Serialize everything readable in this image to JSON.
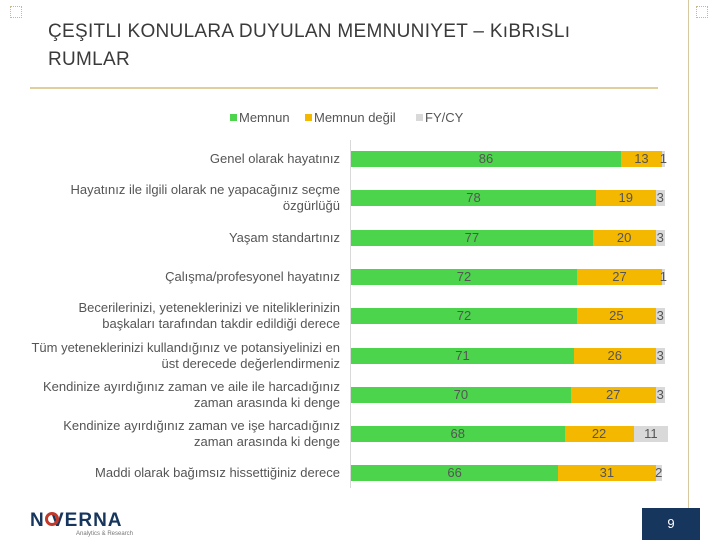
{
  "slide": {
    "title": "ÇEŞITLI KONULARA DUYULAN MEMNUNIYET – KıBRıSLı RUMLAR",
    "page_number": "9",
    "logo_text": "N VERNA",
    "logo_subtext": "Analytics & Research"
  },
  "colors": {
    "memnun": "#4cd44c",
    "memnun_degil": "#f5b800",
    "fy_cy": "#d9d9d9",
    "accent_rule": "#e0cf9c",
    "badge": "#17365d"
  },
  "chart_data": {
    "type": "bar",
    "orientation": "horizontal",
    "stacked": true,
    "title": "",
    "xlabel": "",
    "ylabel": "",
    "xlim": [
      0,
      100
    ],
    "grid": false,
    "legend_position": "top",
    "categories": [
      "Genel olarak hayatınız",
      "Hayatınız ile ilgili olarak ne yapacağınız seçme özgürlüğü",
      "Yaşam standartınız",
      "Çalışma/profesyonel hayatınız",
      "Becerilerinizi, yeteneklerinizi ve niteliklerinizin başkaları tarafından takdir edildiği derece",
      "Tüm yeteneklerinizi kullandığınız ve potansiyelinizi en üst derecede değerlendirmeniz",
      "Kendinize ayırdığınız zaman ve aile ile harcadığınız zaman arasında ki denge",
      "Kendinize ayırdığınız zaman ve işe harcadığınız zaman arasında ki denge",
      "Maddi olarak bağımsız hissettiğiniz derece"
    ],
    "series": [
      {
        "name": "Memnun",
        "values": [
          86,
          78,
          77,
          72,
          72,
          71,
          70,
          68,
          66
        ]
      },
      {
        "name": "Memnun değil",
        "values": [
          13,
          19,
          20,
          27,
          25,
          26,
          27,
          22,
          31
        ]
      },
      {
        "name": "FY/CY",
        "values": [
          1,
          3,
          3,
          1,
          3,
          3,
          3,
          11,
          2
        ]
      }
    ]
  }
}
